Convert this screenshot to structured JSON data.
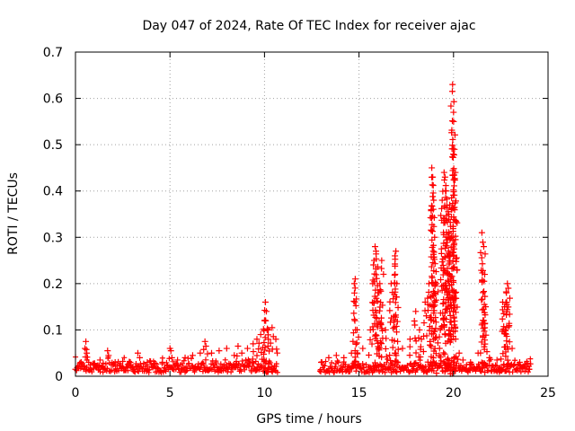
{
  "chart_data": {
    "type": "scatter",
    "title": "Day 047 of 2024, Rate Of TEC Index for receiver ajac",
    "xlabel": "GPS time / hours",
    "ylabel": "ROTI / TECUs",
    "xlim": [
      0,
      25
    ],
    "ylim": [
      0,
      0.7
    ],
    "xticks": [
      "0",
      "5",
      "10",
      "15",
      "20",
      "25"
    ],
    "yticks": [
      "0",
      "0.1",
      "0.2",
      "0.3",
      "0.4",
      "0.5",
      "0.6",
      "0.7"
    ],
    "xtick_values": [
      0,
      5,
      10,
      15,
      20,
      25
    ],
    "ytick_values": [
      0,
      0.1,
      0.2,
      0.3,
      0.4,
      0.5,
      0.6,
      0.7
    ],
    "grid": true,
    "marker": "+",
    "color": "#ff0000",
    "baseline": {
      "segments": [
        {
          "x_start": 0.0,
          "x_end": 10.7,
          "typical_max": 0.035
        },
        {
          "x_start": 12.9,
          "x_end": 24.1,
          "typical_max": 0.03
        }
      ]
    },
    "series": [
      {
        "name": "ROTI",
        "x": [
          0.0,
          0.3,
          0.5,
          0.55,
          0.6,
          0.7,
          1.0,
          1.3,
          1.7,
          1.75,
          2.1,
          2.5,
          2.9,
          3.3,
          3.4,
          3.8,
          4.2,
          4.6,
          5.0,
          5.05,
          5.1,
          5.4,
          5.8,
          6.2,
          6.6,
          6.85,
          6.9,
          7.2,
          7.6,
          8.0,
          8.4,
          8.6,
          8.8,
          9.1,
          9.4,
          9.6,
          9.8,
          10.0,
          10.05,
          10.1,
          10.2,
          10.4,
          10.6,
          13.0,
          13.4,
          13.8,
          14.2,
          14.6,
          14.75,
          14.8,
          14.9,
          15.2,
          15.6,
          15.8,
          15.85,
          15.9,
          16.0,
          16.1,
          16.2,
          16.4,
          16.7,
          16.9,
          16.95,
          17.0,
          17.3,
          17.7,
          18.0,
          18.2,
          18.3,
          18.5,
          18.7,
          18.85,
          18.9,
          18.95,
          19.0,
          19.1,
          19.3,
          19.4,
          19.5,
          19.55,
          19.6,
          19.7,
          19.75,
          19.8,
          19.9,
          19.95,
          20.0,
          20.05,
          20.1,
          20.3,
          20.5,
          20.9,
          21.3,
          21.5,
          21.6,
          21.65,
          21.7,
          21.9,
          22.3,
          22.6,
          22.7,
          22.8,
          22.85,
          22.9,
          23.1,
          23.5,
          23.9,
          24.0
        ],
        "y": [
          0.015,
          0.03,
          0.06,
          0.075,
          0.05,
          0.03,
          0.028,
          0.035,
          0.055,
          0.045,
          0.03,
          0.032,
          0.03,
          0.05,
          0.04,
          0.03,
          0.028,
          0.03,
          0.06,
          0.055,
          0.04,
          0.035,
          0.04,
          0.045,
          0.05,
          0.075,
          0.065,
          0.05,
          0.055,
          0.06,
          0.045,
          0.065,
          0.05,
          0.06,
          0.07,
          0.08,
          0.09,
          0.12,
          0.16,
          0.14,
          0.1,
          0.105,
          0.08,
          0.03,
          0.04,
          0.045,
          0.04,
          0.05,
          0.2,
          0.21,
          0.1,
          0.06,
          0.1,
          0.25,
          0.28,
          0.27,
          0.18,
          0.2,
          0.25,
          0.1,
          0.2,
          0.26,
          0.27,
          0.2,
          0.06,
          0.08,
          0.14,
          0.1,
          0.08,
          0.16,
          0.2,
          0.45,
          0.43,
          0.38,
          0.3,
          0.2,
          0.1,
          0.38,
          0.44,
          0.43,
          0.4,
          0.3,
          0.35,
          0.37,
          0.36,
          0.63,
          0.57,
          0.49,
          0.44,
          0.05,
          0.035,
          0.03,
          0.05,
          0.31,
          0.28,
          0.22,
          0.15,
          0.04,
          0.035,
          0.16,
          0.15,
          0.18,
          0.2,
          0.19,
          0.06,
          0.03,
          0.02,
          0.015
        ]
      }
    ]
  }
}
